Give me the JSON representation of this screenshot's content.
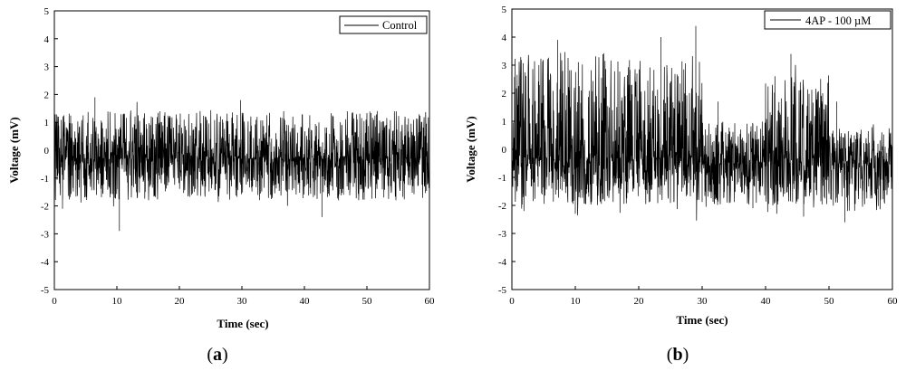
{
  "chart_data": [
    {
      "type": "line",
      "panel_label": "a",
      "xlabel": "Time (sec)",
      "ylabel": "Voltage (mV)",
      "xlim": [
        0,
        60
      ],
      "ylim": [
        -5,
        5
      ],
      "xticks": [
        "0",
        "10",
        "20",
        "30",
        "40",
        "50",
        "60"
      ],
      "yticks": [
        "-5",
        "-4",
        "-3",
        "-2",
        "-1",
        "0",
        "1",
        "2",
        "3",
        "4",
        "5"
      ],
      "legend": "Control",
      "legend_position": "top-right",
      "grid": false,
      "series": [
        {
          "name": "Control",
          "segments": [
            {
              "x_range": [
                0,
                60
              ],
              "baseline": -0.3,
              "noise_low": -1.8,
              "noise_high": 1.4,
              "peaks": [
                [
                  6.5,
                  1.9
                ],
                [
                  10.4,
                  -2.9
                ],
                [
                  29.8,
                  1.8
                ],
                [
                  42.8,
                  -2.4
                ],
                [
                  1.3,
                  -2.1
                ]
              ]
            }
          ]
        }
      ]
    },
    {
      "type": "line",
      "panel_label": "b",
      "xlabel": "Time (sec)",
      "ylabel": "Voltage (mV)",
      "xlim": [
        0,
        60
      ],
      "ylim": [
        -5,
        5
      ],
      "xticks": [
        "0",
        "10",
        "20",
        "30",
        "40",
        "50",
        "60"
      ],
      "yticks": [
        "-5",
        "-4",
        "-3",
        "-2",
        "-1",
        "0",
        "1",
        "2",
        "3",
        "4",
        "5"
      ],
      "legend": "4AP - 100 µM",
      "legend_position": "top-right",
      "grid": false,
      "series": [
        {
          "name": "4AP - 100 µM",
          "segments": [
            {
              "x_range": [
                0,
                30
              ],
              "baseline": -0.3,
              "noise_low": -2.0,
              "noise_high": 3.5,
              "peaks": [
                [
                  7.2,
                  3.9
                ],
                [
                  23.5,
                  4.0
                ],
                [
                  29.0,
                  4.4
                ],
                [
                  10.0,
                  -2.3
                ]
              ]
            },
            {
              "x_range": [
                30,
                40
              ],
              "baseline": -0.5,
              "noise_low": -2.0,
              "noise_high": 1.0,
              "peaks": [
                [
                  32.5,
                  1.7
                ],
                [
                  38.0,
                  -2.1
                ]
              ]
            },
            {
              "x_range": [
                40,
                50
              ],
              "baseline": -0.3,
              "noise_low": -2.0,
              "noise_high": 2.7,
              "peaks": [
                [
                  44.0,
                  3.4
                ],
                [
                  46.0,
                  -2.4
                ]
              ]
            },
            {
              "x_range": [
                50,
                60
              ],
              "baseline": -0.5,
              "noise_low": -2.2,
              "noise_high": 0.8,
              "peaks": [
                [
                  52.5,
                  -2.6
                ],
                [
                  51.2,
                  1.7
                ]
              ]
            }
          ]
        }
      ]
    }
  ]
}
